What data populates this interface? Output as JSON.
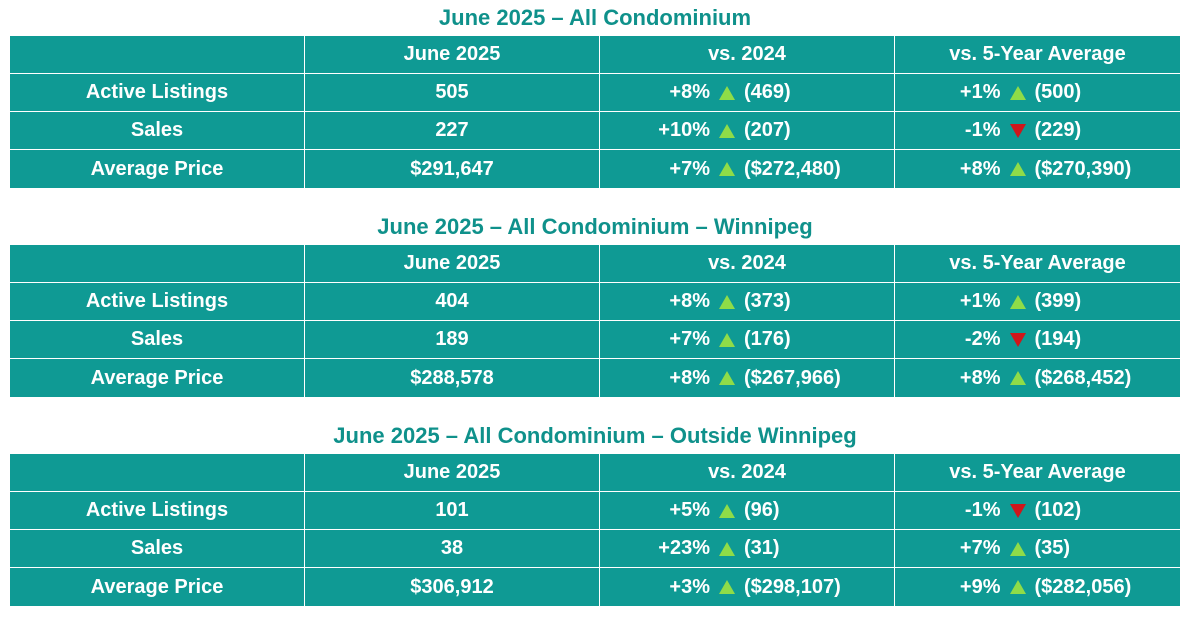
{
  "tables": [
    {
      "title": "June 2025 – All Condominium",
      "headers": [
        "",
        "June 2025",
        "vs. 2024",
        "vs. 5-Year Average"
      ],
      "rows": [
        {
          "label": "Active Listings",
          "value": "505",
          "vs2024": {
            "pct": "+8%",
            "dir": "up",
            "prev": "(469)"
          },
          "vs5yr": {
            "pct": "+1%",
            "dir": "up",
            "prev": "(500)"
          }
        },
        {
          "label": "Sales",
          "value": "227",
          "vs2024": {
            "pct": "+10%",
            "dir": "up",
            "prev": "(207)"
          },
          "vs5yr": {
            "pct": "-1%",
            "dir": "down",
            "prev": "(229)"
          }
        },
        {
          "label": "Average Price",
          "value": "$291,647",
          "vs2024": {
            "pct": "+7%",
            "dir": "up",
            "prev": "($272,480)"
          },
          "vs5yr": {
            "pct": "+8%",
            "dir": "up",
            "prev": "($270,390)"
          }
        }
      ]
    },
    {
      "title": "June 2025 – All Condominium – Winnipeg",
      "headers": [
        "",
        "June 2025",
        "vs. 2024",
        "vs. 5-Year Average"
      ],
      "rows": [
        {
          "label": "Active Listings",
          "value": "404",
          "vs2024": {
            "pct": "+8%",
            "dir": "up",
            "prev": "(373)"
          },
          "vs5yr": {
            "pct": "+1%",
            "dir": "up",
            "prev": "(399)"
          }
        },
        {
          "label": "Sales",
          "value": "189",
          "vs2024": {
            "pct": "+7%",
            "dir": "up",
            "prev": "(176)"
          },
          "vs5yr": {
            "pct": "-2%",
            "dir": "down",
            "prev": "(194)"
          }
        },
        {
          "label": "Average Price",
          "value": "$288,578",
          "vs2024": {
            "pct": "+8%",
            "dir": "up",
            "prev": "($267,966)"
          },
          "vs5yr": {
            "pct": "+8%",
            "dir": "up",
            "prev": "($268,452)"
          }
        }
      ]
    },
    {
      "title": "June 2025 – All Condominium – Outside Winnipeg",
      "headers": [
        "",
        "June 2025",
        "vs. 2024",
        "vs. 5-Year Average"
      ],
      "rows": [
        {
          "label": "Active Listings",
          "value": "101",
          "vs2024": {
            "pct": "+5%",
            "dir": "up",
            "prev": "(96)"
          },
          "vs5yr": {
            "pct": "-1%",
            "dir": "down",
            "prev": "(102)"
          }
        },
        {
          "label": "Sales",
          "value": "38",
          "vs2024": {
            "pct": "+23%",
            "dir": "up",
            "prev": "(31)"
          },
          "vs5yr": {
            "pct": "+7%",
            "dir": "up",
            "prev": "(35)"
          }
        },
        {
          "label": "Average Price",
          "value": "$306,912",
          "vs2024": {
            "pct": "+3%",
            "dir": "up",
            "prev": "($298,107)"
          },
          "vs5yr": {
            "pct": "+9%",
            "dir": "up",
            "prev": "($282,056)"
          }
        }
      ]
    }
  ],
  "colors": {
    "title": "#0f918b",
    "cell_bg": "#0f9a94",
    "up_arrow": "#8fdc48",
    "down_arrow": "#d0161b"
  },
  "icons": {
    "up": "triangle-up-icon",
    "down": "triangle-down-icon"
  }
}
